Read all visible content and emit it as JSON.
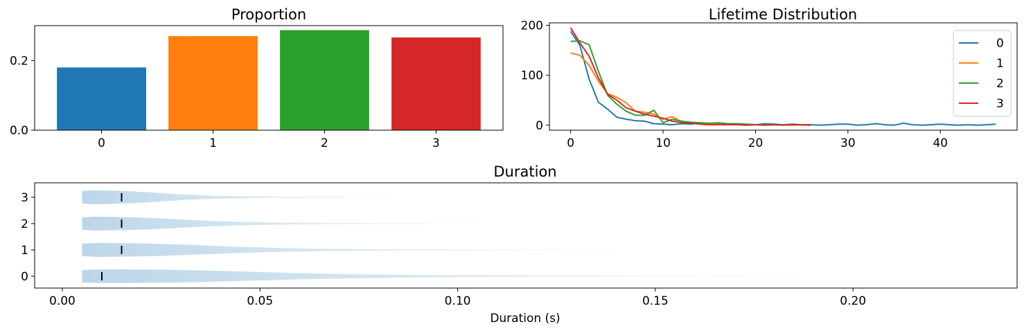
{
  "chart_data": [
    {
      "type": "bar",
      "title": "Proportion",
      "categories": [
        "0",
        "1",
        "2",
        "3"
      ],
      "values": [
        0.18,
        0.27,
        0.287,
        0.266
      ],
      "colors": [
        "#1f77b4",
        "#ff7f0e",
        "#2ca02c",
        "#d62728"
      ],
      "ylim": [
        0,
        0.3
      ],
      "yticks": [
        0.0,
        0.2
      ],
      "ytick_labels": [
        "0.0",
        "0.2"
      ],
      "xlabel": "",
      "ylabel": ""
    },
    {
      "type": "line",
      "title": "Lifetime Distribution",
      "xlim": [
        -2.3,
        48.3
      ],
      "ylim": [
        -10,
        205
      ],
      "xticks": [
        0,
        10,
        20,
        30,
        40
      ],
      "yticks": [
        0,
        100,
        200
      ],
      "legend_position": "top-right",
      "series": [
        {
          "name": "0",
          "color": "#1f77b4",
          "x": [
            0,
            1,
            2,
            3,
            4,
            5,
            6,
            7,
            8,
            9,
            10,
            11,
            12,
            13,
            14,
            15,
            16,
            17,
            18,
            19,
            20,
            21,
            22,
            23,
            24,
            25,
            26,
            27,
            28,
            29,
            30,
            31,
            32,
            33,
            34,
            35,
            36,
            37,
            38,
            39,
            40,
            41,
            42,
            43,
            44,
            45,
            46
          ],
          "values": [
            188,
            160,
            92,
            46,
            32,
            16,
            12,
            9,
            8,
            3,
            2,
            1,
            3,
            2,
            4,
            1,
            3,
            2,
            2,
            1,
            1,
            3,
            2,
            1,
            2,
            1,
            1,
            0,
            1,
            2,
            2,
            0,
            1,
            3,
            1,
            0,
            4,
            1,
            0,
            1,
            2,
            1,
            0,
            1,
            0,
            1,
            2
          ]
        },
        {
          "name": "1",
          "color": "#ff7f0e",
          "x": [
            0,
            1,
            2,
            3,
            4,
            5,
            6,
            7,
            8,
            9,
            10,
            11,
            12,
            13,
            14,
            15,
            16,
            17,
            18,
            19,
            20,
            21,
            22,
            23,
            24,
            25,
            26
          ],
          "values": [
            145,
            140,
            120,
            88,
            63,
            56,
            45,
            28,
            26,
            22,
            12,
            17,
            7,
            5,
            4,
            3,
            3,
            2,
            2,
            1,
            1,
            1,
            1,
            1,
            0,
            1,
            0
          ]
        },
        {
          "name": "2",
          "color": "#2ca02c",
          "x": [
            0,
            1,
            2,
            3,
            4,
            5,
            6,
            7,
            8,
            9,
            10,
            11,
            12,
            13,
            14,
            15,
            16,
            17,
            18,
            19,
            20,
            21,
            22,
            23,
            24,
            25,
            26
          ],
          "values": [
            168,
            169,
            161,
            108,
            60,
            42,
            28,
            20,
            20,
            30,
            5,
            12,
            8,
            6,
            5,
            4,
            5,
            3,
            3,
            2,
            1,
            1,
            1,
            1,
            1,
            1,
            1
          ]
        },
        {
          "name": "3",
          "color": "#d62728",
          "x": [
            0,
            1,
            2,
            3,
            4,
            5,
            6,
            7,
            8,
            9,
            10,
            11,
            12,
            13,
            14,
            15,
            16,
            17,
            18,
            19,
            20,
            21,
            22,
            23,
            24,
            25,
            26
          ],
          "values": [
            195,
            165,
            138,
            95,
            62,
            50,
            35,
            28,
            22,
            18,
            14,
            8,
            5,
            4,
            2,
            1,
            1,
            1,
            1,
            0,
            1,
            0,
            1,
            0,
            1,
            1,
            0
          ]
        }
      ]
    },
    {
      "type": "violin",
      "title": "Duration",
      "xlabel": "Duration (s)",
      "xlim": [
        -0.007,
        0.2415
      ],
      "xticks": [
        0.0,
        0.05,
        0.1,
        0.15,
        0.2
      ],
      "xtick_labels": [
        "0.00",
        "0.05",
        "0.10",
        "0.15",
        "0.20"
      ],
      "categories": [
        "0",
        "1",
        "2",
        "3"
      ],
      "color": "#1f77b4",
      "series": [
        {
          "name": "0",
          "min": 0.005,
          "max": 0.193,
          "median": 0.01
        },
        {
          "name": "1",
          "min": 0.005,
          "max": 0.14,
          "median": 0.015
        },
        {
          "name": "2",
          "min": 0.005,
          "max": 0.108,
          "median": 0.015
        },
        {
          "name": "3",
          "min": 0.005,
          "max": 0.087,
          "median": 0.015
        }
      ]
    }
  ]
}
